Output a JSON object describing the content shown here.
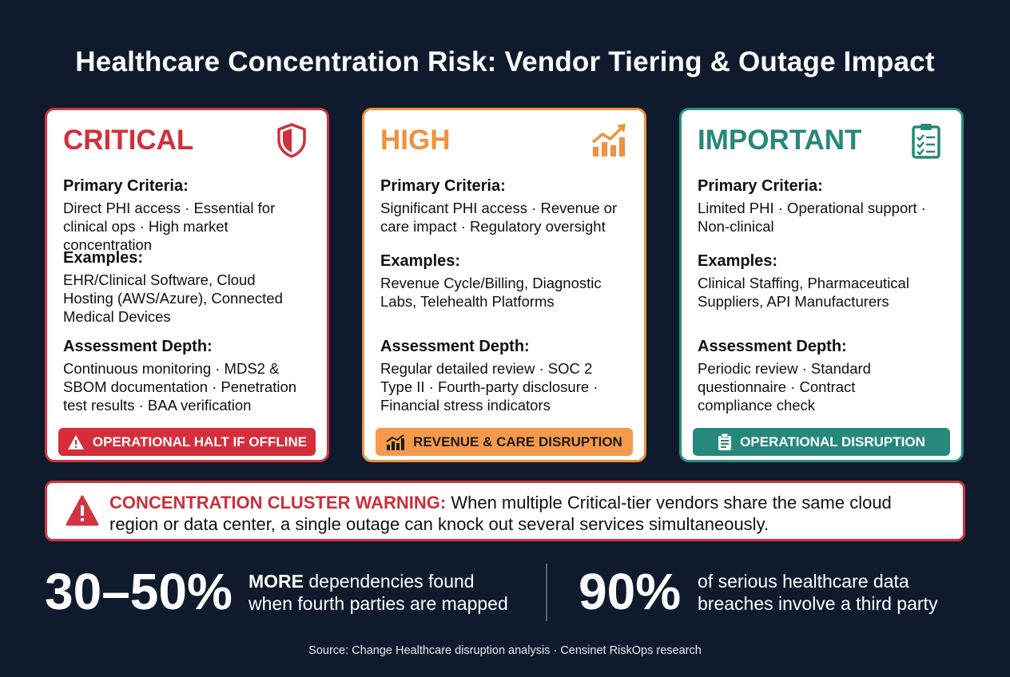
{
  "title": "Healthcare Concentration Risk: Vendor Tiering & Outage Impact",
  "tiers": [
    {
      "name": "CRITICAL",
      "icon": "shield-icon",
      "color": "#d1303b",
      "criteria_label": "Primary Criteria:",
      "criteria_line1": "Direct PHI access · Essential for",
      "criteria_line2": "clinical ops · High market concentration",
      "examples_label": "Examples:",
      "examples_line1": "EHR/Clinical Software, Cloud",
      "examples_line2": "Hosting (AWS/Azure), Connected",
      "examples_line3": "Medical Devices",
      "depth_label": "Assessment Depth:",
      "depth_line1": "Continuous monitoring · MDS2 &",
      "depth_line2": "SBOM documentation · Penetration",
      "depth_line3": "test results · BAA verification",
      "impact_icon": "warning-triangle-icon",
      "impact": "OPERATIONAL HALT IF OFFLINE"
    },
    {
      "name": "HIGH",
      "icon": "trending-up-chart-icon",
      "color": "#f0913c",
      "criteria_label": "Primary Criteria:",
      "criteria_line1": "Significant PHI access · Revenue or",
      "criteria_line2": "care impact · Regulatory oversight",
      "examples_label": "Examples:",
      "examples_line1": "Revenue Cycle/Billing, Diagnostic",
      "examples_line2": "Labs, Telehealth Platforms",
      "depth_label": "Assessment Depth:",
      "depth_line1": "Regular detailed review · SOC 2",
      "depth_line2": "Type II · Fourth-party disclosure ·",
      "depth_line3": "Financial stress indicators",
      "impact_icon": "bar-chart-icon",
      "impact": "REVENUE & CARE DISRUPTION"
    },
    {
      "name": "IMPORTANT",
      "icon": "clipboard-checklist-icon",
      "color": "#26877a",
      "criteria_label": "Primary Criteria:",
      "criteria_line1": "Limited PHI · Operational support ·",
      "criteria_line2": "Non-clinical",
      "examples_label": "Examples:",
      "examples_line1": "Clinical Staffing, Pharmaceutical",
      "examples_line2": "Suppliers, API Manufacturers",
      "depth_label": "Assessment Depth:",
      "depth_line1": "Periodic review · Standard",
      "depth_line2": "questionnaire · Contract",
      "depth_line3": "compliance check",
      "impact_icon": "clipboard-icon",
      "impact": "OPERATIONAL DISRUPTION"
    }
  ],
  "warning": {
    "icon": "warning-triangle-icon",
    "label": "CONCENTRATION CLUSTER WARNING:",
    "text_line1": " When multiple Critical-tier vendors share the same cloud",
    "text_line2": "region or data center, a single outage can knock out several services simultaneously."
  },
  "stats": [
    {
      "value": "30–50%",
      "emph": "MORE",
      "desc_line1": " dependencies found",
      "desc_line2": "when fourth parties are mapped"
    },
    {
      "value": "90%",
      "desc_line1": "of serious healthcare data",
      "desc_line2": "breaches involve a third party"
    }
  ],
  "source": "Source: Change Healthcare disruption analysis · Censinet RiskOps research"
}
